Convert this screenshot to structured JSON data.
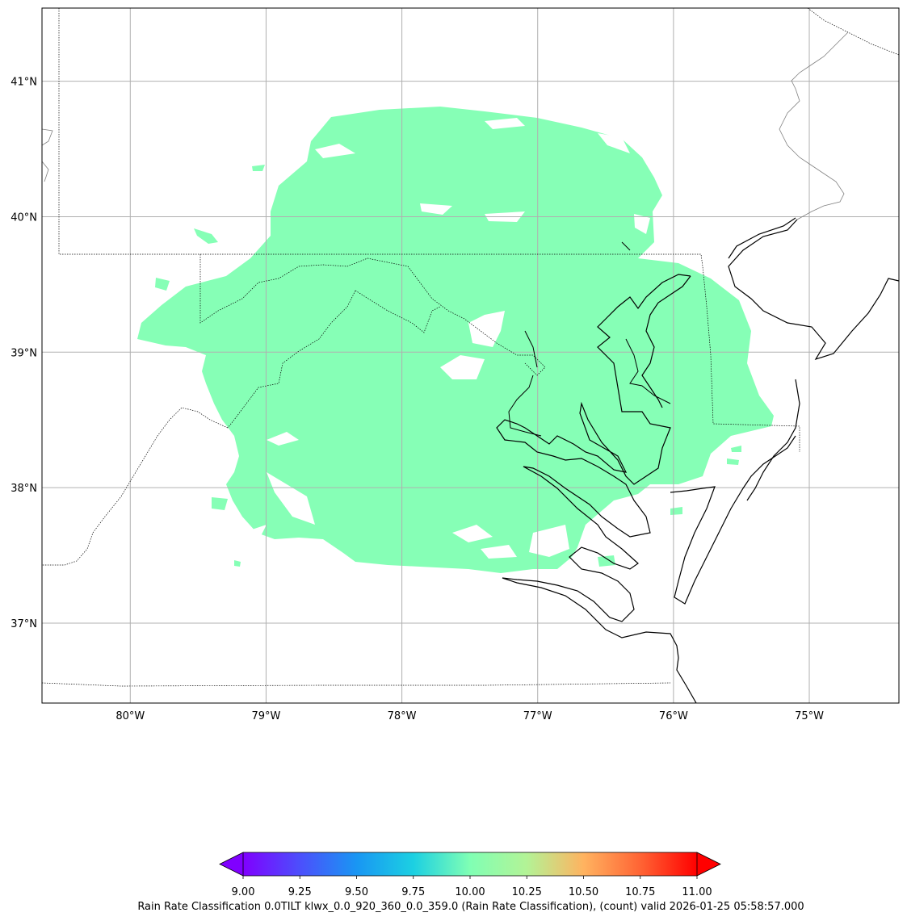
{
  "map": {
    "projection": "PlateCarree",
    "extent": {
      "lon_min": -80.65,
      "lon_max": -74.34,
      "lat_min": 36.41,
      "lat_max": 41.54
    },
    "gridlines": true,
    "lon_ticks": [
      -80,
      -79,
      -78,
      -77,
      -76,
      -75
    ],
    "lat_ticks": [
      37,
      38,
      39,
      40,
      41
    ],
    "lon_tick_labels": [
      "80°W",
      "79°W",
      "78°W",
      "77°W",
      "76°W",
      "75°W"
    ],
    "lat_tick_labels": [
      "37°N",
      "38°N",
      "39°N",
      "40°N",
      "41°N"
    ],
    "field_color": "#86ffb6",
    "field_value": 10.0
  },
  "colorbar": {
    "colormap": "rainbow",
    "min": 9.0,
    "max": 11.0,
    "extend": "both",
    "ticks": [
      "9.00",
      "9.25",
      "9.50",
      "9.75",
      "10.00",
      "10.25",
      "10.50",
      "10.75",
      "11.00"
    ]
  },
  "caption": "Rain Rate Classification 0.0TILT klwx_0.0_920_360_0.0_359.0 (Rain Rate Classification), (count) valid 2026-01-25 05:58:57.000"
}
